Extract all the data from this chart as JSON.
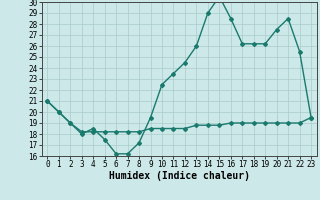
{
  "xlabel": "Humidex (Indice chaleur)",
  "x_ticks": [
    0,
    1,
    2,
    3,
    4,
    5,
    6,
    7,
    8,
    9,
    10,
    11,
    12,
    13,
    14,
    15,
    16,
    17,
    18,
    19,
    20,
    21,
    22,
    23
  ],
  "ylim": [
    16,
    30
  ],
  "yticks": [
    16,
    17,
    18,
    19,
    20,
    21,
    22,
    23,
    24,
    25,
    26,
    27,
    28,
    29,
    30
  ],
  "line1_x": [
    0,
    1,
    2,
    3,
    4,
    5,
    6,
    7,
    8,
    9,
    10,
    11,
    12,
    13,
    14,
    15,
    16,
    17,
    18,
    19,
    20,
    21,
    22,
    23
  ],
  "line1_y": [
    21.0,
    20.0,
    19.0,
    18.0,
    18.5,
    17.5,
    16.2,
    16.2,
    17.2,
    19.5,
    22.5,
    23.5,
    24.5,
    26.0,
    29.0,
    30.5,
    28.5,
    26.2,
    26.2,
    26.2,
    27.5,
    28.5,
    25.5,
    19.5
  ],
  "line2_x": [
    0,
    1,
    2,
    3,
    4,
    5,
    6,
    7,
    8,
    9,
    10,
    11,
    12,
    13,
    14,
    15,
    16,
    17,
    18,
    19,
    20,
    21,
    22,
    23
  ],
  "line2_y": [
    21.0,
    20.0,
    19.0,
    18.2,
    18.2,
    18.2,
    18.2,
    18.2,
    18.2,
    18.5,
    18.5,
    18.5,
    18.5,
    18.8,
    18.8,
    18.8,
    19.0,
    19.0,
    19.0,
    19.0,
    19.0,
    19.0,
    19.0,
    19.5
  ],
  "line_color": "#1a7a6e",
  "bg_color": "#cce8e8",
  "grid_color": "#aacccc",
  "marker": "D",
  "marker_size": 2,
  "line_width": 1.0,
  "tick_label_fontsize": 5.5,
  "xlabel_fontsize": 7
}
